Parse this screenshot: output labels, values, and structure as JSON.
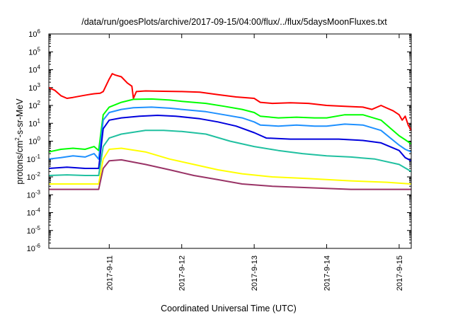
{
  "title": "/data/run/goesPlots/archive/2017-09-15/04:00/flux/../flux/5daysMoonFluxes.txt",
  "chart_data": {
    "type": "line",
    "title": "/data/run/goesPlots/archive/2017-09-15/04:00/flux/../flux/5daysMoonFluxes.txt",
    "xlabel": "Coordinated Universal Time (UTC)",
    "ylabel": "protons/cm2-s-sr-MeV",
    "ylabel_parts": {
      "main": "protons/cm",
      "sup": "2",
      "rest": "-s-sr-MeV"
    },
    "y_scale": "log",
    "ylim": [
      1e-06,
      1000000.0
    ],
    "y_ticks": [
      {
        "base": "10",
        "exp": "-6"
      },
      {
        "base": "10",
        "exp": "-5"
      },
      {
        "base": "10",
        "exp": "-4"
      },
      {
        "base": "10",
        "exp": "-3"
      },
      {
        "base": "10",
        "exp": "-2"
      },
      {
        "base": "10",
        "exp": "-1"
      },
      {
        "base": "10",
        "exp": "0"
      },
      {
        "base": "10",
        "exp": "1"
      },
      {
        "base": "10",
        "exp": "2"
      },
      {
        "base": "10",
        "exp": "3"
      },
      {
        "base": "10",
        "exp": "4"
      },
      {
        "base": "10",
        "exp": "5"
      },
      {
        "base": "10",
        "exp": "6"
      }
    ],
    "xlim": [
      "2017-09-10T04:00",
      "2017-09-15T04:00"
    ],
    "x_ticks": [
      "2017-9-11",
      "2017-9-12",
      "2017-9-13",
      "2017-9-14",
      "2017-9-15"
    ],
    "grid": false,
    "legend": "none",
    "series": [
      {
        "color": "#ff0000",
        "points": [
          [
            "2017-09-10T04:00",
            1000
          ],
          [
            "2017-09-10T06:00",
            700
          ],
          [
            "2017-09-10T08:00",
            350
          ],
          [
            "2017-09-10T10:00",
            250
          ],
          [
            "2017-09-10T12:00",
            280
          ],
          [
            "2017-09-10T15:00",
            350
          ],
          [
            "2017-09-10T17:00",
            400
          ],
          [
            "2017-09-10T19:00",
            450
          ],
          [
            "2017-09-10T21:00",
            480
          ],
          [
            "2017-09-10T22:00",
            600
          ],
          [
            "2017-09-11T00:00",
            3000
          ],
          [
            "2017-09-11T01:00",
            6000
          ],
          [
            "2017-09-11T02:00",
            5000
          ],
          [
            "2017-09-11T04:00",
            4000
          ],
          [
            "2017-09-11T06:00",
            1800
          ],
          [
            "2017-09-11T07:30",
            1200
          ],
          [
            "2017-09-11T08:00",
            250
          ],
          [
            "2017-09-11T09:00",
            600
          ],
          [
            "2017-09-11T12:00",
            650
          ],
          [
            "2017-09-11T18:00",
            620
          ],
          [
            "2017-09-12T00:00",
            600
          ],
          [
            "2017-09-12T06:00",
            550
          ],
          [
            "2017-09-12T12:00",
            400
          ],
          [
            "2017-09-12T18:00",
            300
          ],
          [
            "2017-09-13T00:00",
            250
          ],
          [
            "2017-09-13T02:00",
            150
          ],
          [
            "2017-09-13T06:00",
            130
          ],
          [
            "2017-09-13T12:00",
            140
          ],
          [
            "2017-09-13T18:00",
            130
          ],
          [
            "2017-09-14T00:00",
            100
          ],
          [
            "2017-09-14T06:00",
            90
          ],
          [
            "2017-09-14T12:00",
            80
          ],
          [
            "2017-09-14T15:00",
            60
          ],
          [
            "2017-09-14T18:00",
            100
          ],
          [
            "2017-09-14T20:00",
            70
          ],
          [
            "2017-09-14T22:00",
            50
          ],
          [
            "2017-09-15T00:00",
            30
          ],
          [
            "2017-09-15T01:00",
            15
          ],
          [
            "2017-09-15T02:00",
            25
          ],
          [
            "2017-09-15T03:00",
            8
          ],
          [
            "2017-09-15T04:00",
            4
          ]
        ]
      },
      {
        "color": "#00ff00",
        "points": [
          [
            "2017-09-10T04:00",
            0.25
          ],
          [
            "2017-09-10T08:00",
            0.35
          ],
          [
            "2017-09-10T12:00",
            0.4
          ],
          [
            "2017-09-10T16:00",
            0.35
          ],
          [
            "2017-09-10T19:00",
            0.5
          ],
          [
            "2017-09-10T20:30",
            0.3
          ],
          [
            "2017-09-10T22:00",
            30
          ],
          [
            "2017-09-11T00:00",
            80
          ],
          [
            "2017-09-11T04:00",
            150
          ],
          [
            "2017-09-11T08:00",
            220
          ],
          [
            "2017-09-11T14:00",
            230
          ],
          [
            "2017-09-11T20:00",
            200
          ],
          [
            "2017-09-12T00:00",
            170
          ],
          [
            "2017-09-12T08:00",
            130
          ],
          [
            "2017-09-12T14:00",
            90
          ],
          [
            "2017-09-12T20:00",
            60
          ],
          [
            "2017-09-13T00:00",
            40
          ],
          [
            "2017-09-13T02:00",
            25
          ],
          [
            "2017-09-13T08:00",
            20
          ],
          [
            "2017-09-13T14:00",
            22
          ],
          [
            "2017-09-13T20:00",
            20
          ],
          [
            "2017-09-14T00:00",
            20
          ],
          [
            "2017-09-14T06:00",
            30
          ],
          [
            "2017-09-14T12:00",
            30
          ],
          [
            "2017-09-14T18:00",
            15
          ],
          [
            "2017-09-15T00:00",
            2
          ],
          [
            "2017-09-15T02:00",
            1.2
          ],
          [
            "2017-09-15T04:00",
            0.7
          ]
        ]
      },
      {
        "color": "#1e90ff",
        "points": [
          [
            "2017-09-10T04:00",
            0.1
          ],
          [
            "2017-09-10T08:00",
            0.12
          ],
          [
            "2017-09-10T12:00",
            0.15
          ],
          [
            "2017-09-10T16:00",
            0.13
          ],
          [
            "2017-09-10T19:00",
            0.2
          ],
          [
            "2017-09-10T20:30",
            0.1
          ],
          [
            "2017-09-10T22:00",
            15
          ],
          [
            "2017-09-11T00:00",
            40
          ],
          [
            "2017-09-11T04:00",
            60
          ],
          [
            "2017-09-11T08:00",
            75
          ],
          [
            "2017-09-11T14:00",
            80
          ],
          [
            "2017-09-11T20:00",
            70
          ],
          [
            "2017-09-12T00:00",
            60
          ],
          [
            "2017-09-12T08:00",
            45
          ],
          [
            "2017-09-12T14:00",
            30
          ],
          [
            "2017-09-12T20:00",
            20
          ],
          [
            "2017-09-13T00:00",
            12
          ],
          [
            "2017-09-13T02:00",
            8
          ],
          [
            "2017-09-13T08:00",
            7
          ],
          [
            "2017-09-13T14:00",
            8
          ],
          [
            "2017-09-13T20:00",
            7
          ],
          [
            "2017-09-14T00:00",
            7
          ],
          [
            "2017-09-14T06:00",
            9
          ],
          [
            "2017-09-14T12:00",
            8
          ],
          [
            "2017-09-14T18:00",
            4
          ],
          [
            "2017-09-15T00:00",
            0.6
          ],
          [
            "2017-09-15T02:00",
            0.35
          ],
          [
            "2017-09-15T04:00",
            0.25
          ]
        ]
      },
      {
        "color": "#0000dd",
        "points": [
          [
            "2017-09-10T04:00",
            0.03
          ],
          [
            "2017-09-10T10:00",
            0.035
          ],
          [
            "2017-09-10T16:00",
            0.03
          ],
          [
            "2017-09-10T20:30",
            0.03
          ],
          [
            "2017-09-10T22:00",
            5
          ],
          [
            "2017-09-11T00:00",
            15
          ],
          [
            "2017-09-11T04:00",
            20
          ],
          [
            "2017-09-11T10:00",
            25
          ],
          [
            "2017-09-11T16:00",
            28
          ],
          [
            "2017-09-11T22:00",
            25
          ],
          [
            "2017-09-12T06:00",
            18
          ],
          [
            "2017-09-12T12:00",
            12
          ],
          [
            "2017-09-12T18:00",
            7
          ],
          [
            "2017-09-13T00:00",
            3
          ],
          [
            "2017-09-13T04:00",
            1.5
          ],
          [
            "2017-09-13T12:00",
            1.3
          ],
          [
            "2017-09-13T20:00",
            1.3
          ],
          [
            "2017-09-14T04:00",
            1.3
          ],
          [
            "2017-09-14T12:00",
            1.1
          ],
          [
            "2017-09-14T18:00",
            0.8
          ],
          [
            "2017-09-15T00:00",
            0.3
          ],
          [
            "2017-09-15T02:00",
            0.12
          ],
          [
            "2017-09-15T04:00",
            0.08
          ]
        ]
      },
      {
        "color": "#20c0a0",
        "points": [
          [
            "2017-09-10T04:00",
            0.012
          ],
          [
            "2017-09-10T10:00",
            0.013
          ],
          [
            "2017-09-10T16:00",
            0.012
          ],
          [
            "2017-09-10T20:30",
            0.012
          ],
          [
            "2017-09-10T22:00",
            0.5
          ],
          [
            "2017-09-11T00:00",
            1.5
          ],
          [
            "2017-09-11T04:00",
            2.5
          ],
          [
            "2017-09-11T12:00",
            4
          ],
          [
            "2017-09-11T18:00",
            4
          ],
          [
            "2017-09-12T00:00",
            3.5
          ],
          [
            "2017-09-12T08:00",
            2.5
          ],
          [
            "2017-09-12T16:00",
            1
          ],
          [
            "2017-09-13T00:00",
            0.5
          ],
          [
            "2017-09-13T08:00",
            0.3
          ],
          [
            "2017-09-13T16:00",
            0.2
          ],
          [
            "2017-09-14T00:00",
            0.15
          ],
          [
            "2017-09-14T08:00",
            0.13
          ],
          [
            "2017-09-14T16:00",
            0.1
          ],
          [
            "2017-09-15T00:00",
            0.05
          ],
          [
            "2017-09-15T04:00",
            0.02
          ]
        ]
      },
      {
        "color": "#ffff00",
        "points": [
          [
            "2017-09-10T04:00",
            0.004
          ],
          [
            "2017-09-10T12:00",
            0.004
          ],
          [
            "2017-09-10T20:30",
            0.004
          ],
          [
            "2017-09-10T22:00",
            0.1
          ],
          [
            "2017-09-11T00:00",
            0.35
          ],
          [
            "2017-09-11T04:00",
            0.4
          ],
          [
            "2017-09-11T12:00",
            0.25
          ],
          [
            "2017-09-11T20:00",
            0.1
          ],
          [
            "2017-09-12T04:00",
            0.05
          ],
          [
            "2017-09-12T12:00",
            0.025
          ],
          [
            "2017-09-12T20:00",
            0.015
          ],
          [
            "2017-09-13T06:00",
            0.01
          ],
          [
            "2017-09-13T18:00",
            0.008
          ],
          [
            "2017-09-14T08:00",
            0.006
          ],
          [
            "2017-09-14T20:00",
            0.005
          ],
          [
            "2017-09-15T04:00",
            0.004
          ]
        ]
      },
      {
        "color": "#993366",
        "points": [
          [
            "2017-09-10T04:00",
            0.002
          ],
          [
            "2017-09-10T12:00",
            0.002
          ],
          [
            "2017-09-10T20:30",
            0.002
          ],
          [
            "2017-09-10T22:00",
            0.03
          ],
          [
            "2017-09-11T00:00",
            0.08
          ],
          [
            "2017-09-11T04:00",
            0.09
          ],
          [
            "2017-09-11T12:00",
            0.05
          ],
          [
            "2017-09-11T20:00",
            0.025
          ],
          [
            "2017-09-12T04:00",
            0.012
          ],
          [
            "2017-09-12T12:00",
            0.007
          ],
          [
            "2017-09-12T20:00",
            0.004
          ],
          [
            "2017-09-13T06:00",
            0.003
          ],
          [
            "2017-09-13T18:00",
            0.0025
          ],
          [
            "2017-09-14T08:00",
            0.002
          ],
          [
            "2017-09-14T20:00",
            0.002
          ],
          [
            "2017-09-15T04:00",
            0.002
          ]
        ]
      }
    ]
  }
}
